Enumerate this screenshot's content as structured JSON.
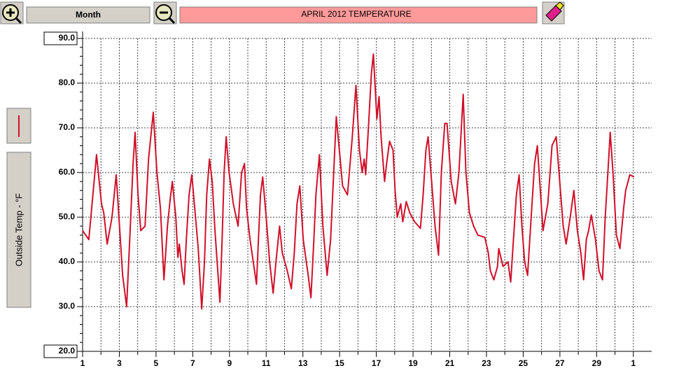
{
  "toolbar": {
    "range_button": "Month"
  },
  "chart_data": {
    "type": "line",
    "title": "APRIL  2012  TEMPERATURE",
    "ylabel": "Outside Temp - °F",
    "color": "#d0102a",
    "grid": true,
    "xlim": [
      1,
      32
    ],
    "ylim": [
      20,
      90
    ],
    "xticks": [
      1,
      3,
      5,
      7,
      9,
      11,
      13,
      15,
      17,
      19,
      21,
      23,
      25,
      27,
      29,
      {
        "value": 31,
        "label": "1"
      }
    ],
    "yticks": [
      {
        "value": 20,
        "label": "20.0"
      },
      {
        "value": 30,
        "label": "30.0"
      },
      {
        "value": 40,
        "label": "40.0"
      },
      {
        "value": 50,
        "label": "50.0"
      },
      {
        "value": 60,
        "label": "60.0"
      },
      {
        "value": 70,
        "label": "70.0"
      },
      {
        "value": 80,
        "label": "80.0"
      },
      {
        "value": 90,
        "label": "90.0"
      }
    ],
    "x": [
      1.0,
      1.34,
      1.76,
      2.03,
      2.15,
      2.34,
      2.6,
      2.83,
      2.98,
      3.18,
      3.4,
      3.6,
      3.75,
      3.86,
      4.02,
      4.17,
      4.4,
      4.59,
      4.85,
      5.05,
      5.24,
      5.43,
      5.62,
      5.77,
      5.89,
      6.08,
      6.19,
      6.27,
      6.42,
      6.53,
      6.65,
      6.8,
      6.95,
      7.11,
      7.3,
      7.49,
      7.64,
      7.76,
      7.91,
      8.06,
      8.21,
      8.33,
      8.48,
      8.6,
      8.71,
      8.82,
      8.98,
      9.21,
      9.47,
      9.66,
      9.82,
      9.93,
      10.12,
      10.47,
      10.58,
      10.69,
      10.81,
      11.0,
      11.19,
      11.38,
      11.53,
      11.73,
      11.88,
      12.15,
      12.37,
      12.53,
      12.68,
      12.83,
      13.02,
      13.29,
      13.44,
      13.6,
      13.71,
      13.9,
      14.09,
      14.32,
      14.51,
      14.7,
      14.82,
      15.01,
      15.16,
      15.43,
      15.69,
      15.89,
      16.08,
      16.23,
      16.34,
      16.42,
      16.57,
      16.73,
      16.84,
      17.03,
      17.15,
      17.26,
      17.45,
      17.56,
      17.72,
      17.91,
      18.02,
      18.14,
      18.33,
      18.44,
      18.63,
      18.82,
      19.08,
      19.4,
      19.55,
      19.7,
      19.82,
      20.01,
      20.2,
      20.39,
      20.54,
      20.73,
      20.85,
      21.08,
      21.31,
      21.5,
      21.73,
      21.88,
      22.07,
      22.3,
      22.53,
      22.91,
      23.1,
      23.21,
      23.4,
      23.6,
      23.67,
      23.9,
      24.17,
      24.32,
      24.47,
      24.63,
      24.78,
      24.93,
      25.08,
      25.24,
      25.39,
      25.62,
      25.77,
      25.92,
      26.08,
      26.34,
      26.57,
      26.8,
      26.99,
      27.18,
      27.34,
      27.56,
      27.76,
      27.95,
      28.14,
      28.29,
      28.44,
      28.56,
      28.71,
      28.94,
      29.13,
      29.32,
      29.47,
      29.63,
      29.74,
      29.89,
      30.08,
      30.27,
      30.47,
      30.58,
      30.81,
      31.04
    ],
    "values": [
      47,
      45,
      64,
      53,
      51,
      44,
      50,
      59.5,
      50,
      37,
      30,
      48,
      62,
      69,
      55,
      47,
      48,
      63,
      73.5,
      60,
      52,
      36,
      48,
      54,
      58,
      50,
      41,
      44,
      38,
      35,
      45,
      55,
      59.5,
      52,
      43,
      29.5,
      40,
      55,
      63,
      58,
      47,
      40,
      31,
      45,
      60,
      68,
      60,
      53,
      48,
      60,
      62,
      52,
      45,
      35,
      45,
      55,
      59,
      50,
      40,
      33,
      40,
      48,
      42,
      38,
      34,
      42,
      53,
      57,
      45,
      37,
      32,
      45,
      55,
      64,
      48,
      37,
      45,
      62,
      72.5,
      64,
      57,
      55,
      68,
      79.5,
      65,
      60,
      63,
      59.5,
      70,
      82,
      86.5,
      72,
      77,
      68,
      58,
      62,
      67,
      65,
      56,
      50,
      53,
      49,
      53.5,
      51,
      49,
      47.5,
      55,
      65,
      68,
      58,
      48,
      41.5,
      60,
      71,
      71,
      58,
      53,
      60,
      77.5,
      60,
      51,
      48,
      46,
      45.5,
      42,
      38,
      36,
      39,
      43,
      39,
      40,
      35.5,
      45,
      55,
      59.5,
      48,
      40,
      37,
      47,
      62,
      66,
      57,
      47,
      53,
      66,
      68,
      58,
      48,
      44,
      50,
      56,
      47,
      42,
      36,
      45,
      47,
      50.5,
      45,
      38,
      36,
      50,
      61,
      69,
      60,
      46,
      43,
      52,
      56,
      59.5,
      59
    ]
  }
}
